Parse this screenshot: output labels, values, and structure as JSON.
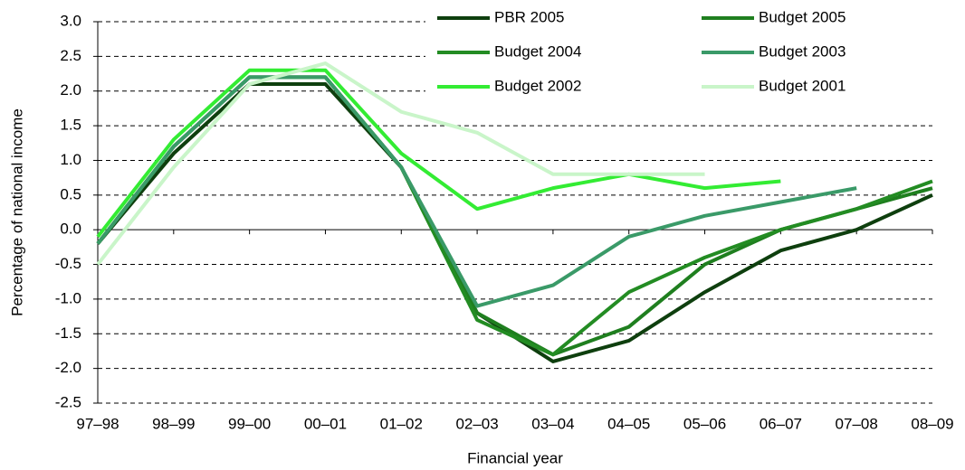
{
  "chart_data": {
    "type": "line",
    "x_label": "Financial year",
    "y_label": "Percentage of national income",
    "categories": [
      "97–98",
      "98–99",
      "99–00",
      "00–01",
      "01–02",
      "02–03",
      "03–04",
      "04–05",
      "05–06",
      "06–07",
      "07–08",
      "08–09"
    ],
    "series": [
      {
        "name": "PBR 2005",
        "color": "#0e3f0e",
        "values": [
          -0.2,
          1.1,
          2.1,
          2.1,
          0.9,
          -1.2,
          -1.9,
          -1.6,
          -0.9,
          -0.3,
          0.0,
          0.5
        ]
      },
      {
        "name": "Budget 2005",
        "color": "#1f7f1f",
        "values": [
          -0.2,
          1.2,
          2.2,
          2.2,
          0.9,
          -1.2,
          -1.8,
          -1.4,
          -0.5,
          0.0,
          0.3,
          0.6
        ]
      },
      {
        "name": "Budget 2004",
        "color": "#238c23",
        "values": [
          -0.2,
          1.2,
          2.2,
          2.2,
          0.9,
          -1.3,
          -1.8,
          -0.9,
          -0.4,
          0.0,
          0.3,
          0.7
        ]
      },
      {
        "name": "Budget 2003",
        "color": "#3a9a68",
        "values": [
          -0.2,
          1.2,
          2.2,
          2.2,
          0.9,
          -1.1,
          -0.8,
          -0.1,
          0.2,
          0.4,
          0.6,
          null
        ]
      },
      {
        "name": "Budget 2002",
        "color": "#33ec33",
        "values": [
          -0.1,
          1.3,
          2.3,
          2.3,
          1.1,
          0.3,
          0.6,
          0.8,
          0.6,
          0.7,
          null,
          null
        ]
      },
      {
        "name": "Budget 2001",
        "color": "#c9f5c9",
        "values": [
          -0.5,
          0.9,
          2.1,
          2.4,
          1.7,
          1.4,
          0.8,
          0.8,
          0.8,
          null,
          null,
          null
        ]
      }
    ],
    "ylim": [
      -2.5,
      3
    ],
    "yticks": [
      {
        "value": -2.5,
        "label": "-2.5"
      },
      {
        "value": -2,
        "label": "-2.0"
      },
      -1.5,
      {
        "value": -1,
        "label": "-1.0"
      },
      -0.5,
      {
        "value": 0,
        "label": "0.0"
      },
      0.5,
      {
        "value": 1,
        "label": "1.0"
      },
      1.5,
      {
        "value": 2,
        "label": "2.0"
      },
      2.5,
      {
        "value": 3,
        "label": "3.0"
      }
    ],
    "grid": true
  }
}
